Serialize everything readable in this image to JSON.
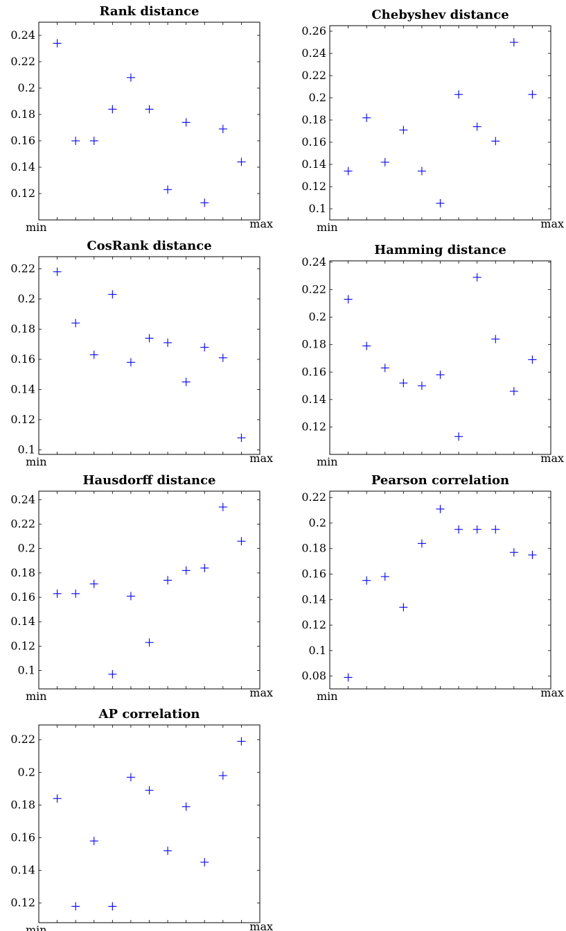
{
  "chart_data": [
    {
      "type": "scatter",
      "title": "Rank distance",
      "xlabel": "",
      "ylabel": "",
      "x_tick_labels": [
        "min",
        "max"
      ],
      "x": [
        1,
        2,
        3,
        4,
        5,
        6,
        7,
        8,
        9,
        10,
        11
      ],
      "values": [
        0.234,
        0.16,
        0.16,
        0.184,
        0.208,
        0.184,
        0.123,
        0.174,
        0.113,
        0.169,
        0.144
      ],
      "ylim": [
        0.1,
        0.25
      ],
      "yticks": [
        0.12,
        0.14,
        0.16,
        0.18,
        0.2,
        0.22,
        0.24
      ],
      "ytick_labels": [
        "0.12",
        "0.14",
        "0.16",
        "0.18",
        "0.2",
        "0.22",
        "0.24"
      ],
      "grid": false
    },
    {
      "type": "scatter",
      "title": "Chebyshev distance",
      "xlabel": "",
      "ylabel": "",
      "x_tick_labels": [
        "min",
        "max"
      ],
      "x": [
        1,
        2,
        3,
        4,
        5,
        6,
        7,
        8,
        9,
        10,
        11
      ],
      "values": [
        0.134,
        0.182,
        0.142,
        0.171,
        0.134,
        0.105,
        0.203,
        0.174,
        0.161,
        0.25,
        0.203
      ],
      "ylim": [
        0.09,
        0.265
      ],
      "yticks": [
        0.1,
        0.12,
        0.14,
        0.16,
        0.18,
        0.2,
        0.22,
        0.24,
        0.26
      ],
      "ytick_labels": [
        "0.1",
        "0.12",
        "0.14",
        "0.16",
        "0.18",
        "0.2",
        "0.22",
        "0.24",
        "0.26"
      ],
      "grid": false
    },
    {
      "type": "scatter",
      "title": "CosRank distance",
      "xlabel": "",
      "ylabel": "",
      "x_tick_labels": [
        "min",
        "max"
      ],
      "x": [
        1,
        2,
        3,
        4,
        5,
        6,
        7,
        8,
        9,
        10,
        11
      ],
      "values": [
        0.218,
        0.184,
        0.163,
        0.203,
        0.158,
        0.174,
        0.171,
        0.145,
        0.168,
        0.161,
        0.108
      ],
      "ylim": [
        0.097,
        0.228
      ],
      "yticks": [
        0.1,
        0.12,
        0.14,
        0.16,
        0.18,
        0.2,
        0.22
      ],
      "ytick_labels": [
        "0.1",
        "0.12",
        "0.14",
        "0.16",
        "0.18",
        "0.2",
        "0.22"
      ],
      "grid": false
    },
    {
      "type": "scatter",
      "title": "Hamming distance",
      "xlabel": "",
      "ylabel": "",
      "x_tick_labels": [
        "min",
        "max"
      ],
      "x": [
        1,
        2,
        3,
        4,
        5,
        6,
        7,
        8,
        9,
        10,
        11
      ],
      "values": [
        0.213,
        0.179,
        0.163,
        0.152,
        0.15,
        0.158,
        0.113,
        0.229,
        0.184,
        0.146,
        0.169
      ],
      "ylim": [
        0.1,
        0.241
      ],
      "yticks": [
        0.12,
        0.14,
        0.16,
        0.18,
        0.2,
        0.22,
        0.24
      ],
      "ytick_labels": [
        "0.12",
        "0.14",
        "0.16",
        "0.18",
        "0.2",
        "0.22",
        "0.24"
      ],
      "grid": false
    },
    {
      "type": "scatter",
      "title": "Hausdorff distance",
      "xlabel": "",
      "ylabel": "",
      "x_tick_labels": [
        "min",
        "max"
      ],
      "x": [
        1,
        2,
        3,
        4,
        5,
        6,
        7,
        8,
        9,
        10,
        11
      ],
      "values": [
        0.163,
        0.163,
        0.171,
        0.097,
        0.161,
        0.123,
        0.174,
        0.182,
        0.184,
        0.234,
        0.206
      ],
      "ylim": [
        0.085,
        0.247
      ],
      "yticks": [
        0.1,
        0.12,
        0.14,
        0.16,
        0.18,
        0.2,
        0.22,
        0.24
      ],
      "ytick_labels": [
        "0.1",
        "0.12",
        "0.14",
        "0.16",
        "0.18",
        "0.2",
        "0.22",
        "0.24"
      ],
      "grid": false
    },
    {
      "type": "scatter",
      "title": "Pearson correlation",
      "xlabel": "",
      "ylabel": "",
      "x_tick_labels": [
        "min",
        "max"
      ],
      "x": [
        1,
        2,
        3,
        4,
        5,
        6,
        7,
        8,
        9,
        10,
        11
      ],
      "values": [
        0.079,
        0.155,
        0.158,
        0.134,
        0.184,
        0.211,
        0.195,
        0.195,
        0.195,
        0.177,
        0.175
      ],
      "ylim": [
        0.07,
        0.225
      ],
      "yticks": [
        0.08,
        0.1,
        0.12,
        0.14,
        0.16,
        0.18,
        0.2,
        0.22
      ],
      "ytick_labels": [
        "0.08",
        "0.1",
        "0.12",
        "0.14",
        "0.16",
        "0.18",
        "0.2",
        "0.22"
      ],
      "grid": false
    },
    {
      "type": "scatter",
      "title": "AP correlation",
      "xlabel": "",
      "ylabel": "",
      "x_tick_labels": [
        "min",
        "max"
      ],
      "x": [
        1,
        2,
        3,
        4,
        5,
        6,
        7,
        8,
        9,
        10,
        11
      ],
      "values": [
        0.184,
        0.118,
        0.158,
        0.118,
        0.197,
        0.189,
        0.152,
        0.179,
        0.145,
        0.198,
        0.219
      ],
      "ylim": [
        0.108,
        0.229
      ],
      "yticks": [
        0.12,
        0.14,
        0.16,
        0.18,
        0.2,
        0.22
      ],
      "ytick_labels": [
        "0.12",
        "0.14",
        "0.16",
        "0.18",
        "0.2",
        "0.22"
      ],
      "grid": false
    }
  ]
}
